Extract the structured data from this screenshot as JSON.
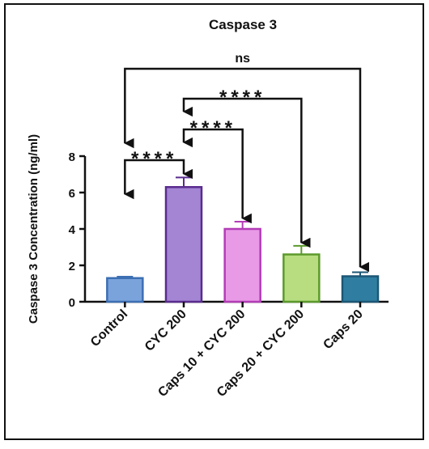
{
  "chart_data": {
    "type": "bar",
    "title": "Caspase 3",
    "y_label": "Caspase 3 Concentration (ng/ml)",
    "categories": [
      "Control",
      "CYC 200",
      "Caps 10 + CYC 200",
      "Caps 20 + CYC 200",
      "Caps 20"
    ],
    "values": [
      1.3,
      6.3,
      4.0,
      2.6,
      1.4
    ],
    "errors": [
      0.08,
      0.53,
      0.4,
      0.47,
      0.22
    ],
    "colors": [
      "#7aa3dc",
      "#a385d4",
      "#e99ae6",
      "#b8dd80",
      "#2f7ea1"
    ],
    "edge_colors": [
      "#3d6fb3",
      "#5a2c8f",
      "#b23db6",
      "#5b9a2c",
      "#1c5775"
    ],
    "ylim": [
      0,
      8
    ],
    "yticks": [
      0,
      2,
      4,
      6,
      8
    ],
    "annotations": [
      "****",
      "****",
      "****",
      "ns"
    ]
  }
}
